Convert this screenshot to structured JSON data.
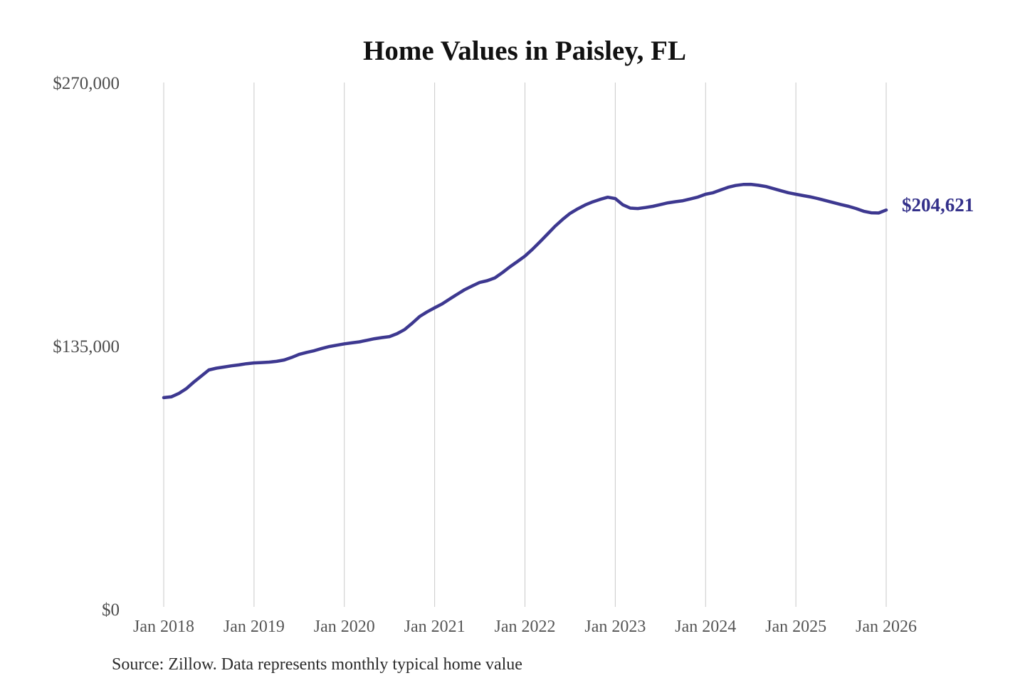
{
  "chart_data": {
    "type": "line",
    "title": "Home Values in Paisley, FL",
    "source_note": "Source: Zillow. Data represents monthly typical home value",
    "end_label": "$204,621",
    "end_value": 204621,
    "ylabel": "",
    "xlabel": "",
    "ylim": [
      0,
      270000
    ],
    "y_ticks": [
      0,
      135000,
      270000
    ],
    "y_tick_labels": [
      "$0",
      "$135,000",
      "$270,000"
    ],
    "x_tick_labels": [
      "Jan 2018",
      "Jan 2019",
      "Jan 2020",
      "Jan 2021",
      "Jan 2022",
      "Jan 2023",
      "Jan 2024",
      "Jan 2025",
      "Jan 2026"
    ],
    "x_start_month": "2018-01",
    "x_end_month": "2026-01",
    "grid": "vertical-only",
    "legend": "none",
    "colors": {
      "line": "#3d3890",
      "end_label": "#33308a",
      "title": "#111111",
      "x_axis_labels": "#555555",
      "y_axis_labels": "#4d4d4d",
      "gridline": "#c9c9c9",
      "source_text": "#2b2b2b",
      "background": "#ffffff"
    },
    "series": [
      {
        "name": "Typical home value (monthly)",
        "values": [
          108400,
          108800,
          110500,
          113000,
          116400,
          119500,
          122600,
          123500,
          124100,
          124700,
          125200,
          125800,
          126200,
          126400,
          126600,
          127000,
          127700,
          129000,
          130600,
          131600,
          132500,
          133600,
          134600,
          135300,
          136000,
          136500,
          137000,
          137800,
          138600,
          139200,
          139700,
          141200,
          143300,
          146500,
          150000,
          152400,
          154500,
          156500,
          159000,
          161400,
          163800,
          165700,
          167500,
          168400,
          169800,
          172500,
          175500,
          178200,
          181000,
          184500,
          188300,
          192300,
          196300,
          199800,
          202900,
          205200,
          207200,
          208800,
          210100,
          211200,
          210500,
          207300,
          205600,
          205400,
          205900,
          206500,
          207400,
          208300,
          208900,
          209400,
          210300,
          211300,
          212700,
          213500,
          214900,
          216300,
          217200,
          217700,
          217800,
          217300,
          216700,
          215600,
          214500,
          213500,
          212700,
          212000,
          211300,
          210400,
          209400,
          208400,
          207400,
          206500,
          205400,
          204000,
          203200,
          203100,
          204621
        ]
      }
    ]
  }
}
